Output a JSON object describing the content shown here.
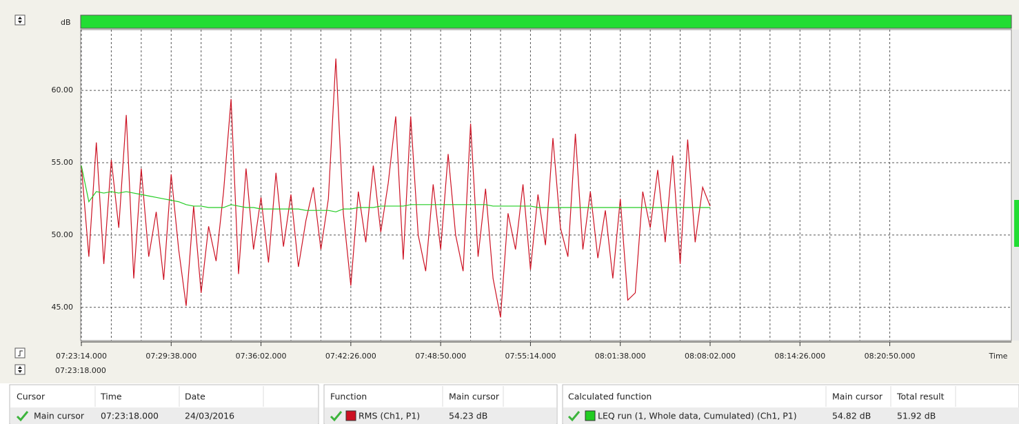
{
  "chart_data": {
    "type": "line",
    "y_label": "dB",
    "x_label": "Time",
    "x": [
      "07:23:14.000",
      "07:23:46.000",
      "07:24:18.000",
      "07:24:50.000",
      "07:25:22.000",
      "07:25:54.000",
      "07:26:26.000",
      "07:26:58.000",
      "07:27:30.000",
      "07:28:02.000",
      "07:28:34.000",
      "07:29:06.000",
      "07:29:38.000",
      "07:30:10.000",
      "07:30:42.000",
      "07:31:14.000",
      "07:31:46.000",
      "07:32:18.000",
      "07:32:50.000",
      "07:33:22.000",
      "07:33:54.000",
      "07:34:26.000",
      "07:34:58.000",
      "07:35:30.000",
      "07:36:02.000",
      "07:36:34.000",
      "07:37:06.000",
      "07:37:38.000",
      "07:38:10.000",
      "07:38:42.000",
      "07:39:14.000",
      "07:39:46.000",
      "07:40:18.000",
      "07:40:50.000",
      "07:41:22.000",
      "07:41:54.000",
      "07:42:26.000",
      "07:42:58.000",
      "07:43:30.000",
      "07:44:02.000",
      "07:44:34.000",
      "07:45:06.000",
      "07:45:38.000",
      "07:46:10.000",
      "07:46:42.000",
      "07:47:14.000",
      "07:47:46.000",
      "07:48:18.000",
      "07:48:50.000",
      "07:49:22.000",
      "07:49:54.000",
      "07:50:26.000",
      "07:50:58.000",
      "07:51:30.000",
      "07:52:02.000",
      "07:52:34.000",
      "07:53:06.000",
      "07:53:38.000",
      "07:54:10.000",
      "07:54:42.000",
      "07:55:14.000",
      "07:55:46.000",
      "07:56:18.000",
      "07:56:50.000",
      "07:57:22.000",
      "07:57:54.000",
      "07:58:26.000",
      "07:58:58.000",
      "07:59:30.000",
      "08:00:02.000",
      "08:00:34.000",
      "08:01:06.000",
      "08:01:38.000",
      "08:02:10.000",
      "08:02:42.000",
      "08:03:14.000",
      "08:03:46.000",
      "08:04:18.000",
      "08:04:50.000",
      "08:05:22.000",
      "08:05:54.000",
      "08:06:26.000",
      "08:06:58.000",
      "08:07:30.000",
      "08:08:02.000"
    ],
    "series": [
      {
        "name": "RMS (Ch1, P1)",
        "color": "#cc1122",
        "values": [
          54.8,
          48.5,
          56.4,
          48.0,
          55.2,
          50.5,
          58.3,
          47.0,
          54.6,
          48.5,
          51.6,
          46.9,
          54.2,
          49.0,
          45.1,
          52.0,
          46.0,
          50.6,
          48.2,
          53.0,
          59.4,
          47.3,
          54.6,
          49.0,
          52.6,
          48.1,
          54.3,
          49.2,
          52.8,
          47.8,
          51.0,
          53.3,
          49.0,
          52.5,
          62.2,
          51.5,
          46.5,
          53.0,
          49.5,
          54.8,
          50.2,
          53.6,
          58.2,
          48.3,
          58.2,
          50.0,
          47.5,
          53.5,
          49.0,
          55.6,
          50.0,
          47.5,
          57.7,
          48.5,
          53.2,
          47.0,
          44.3,
          51.5,
          49.0,
          53.5,
          47.6,
          52.8,
          49.3,
          56.7,
          50.5,
          48.5,
          57.0,
          49.0,
          53.0,
          48.4,
          51.7,
          47.0,
          52.5,
          45.5,
          46.0,
          53.0,
          50.5,
          54.5,
          49.5,
          55.5,
          48.0,
          56.6,
          49.5,
          53.3,
          52.0
        ]
      },
      {
        "name": "LEQ run (1, Whole data, Cumulated) (Ch1, P1)",
        "color": "#22cc22",
        "values": [
          54.8,
          52.3,
          53.0,
          52.9,
          53.0,
          52.9,
          53.0,
          52.9,
          52.8,
          52.7,
          52.6,
          52.5,
          52.4,
          52.3,
          52.1,
          52.0,
          52.0,
          51.9,
          51.9,
          51.9,
          52.1,
          52.0,
          51.9,
          51.9,
          51.8,
          51.8,
          51.8,
          51.8,
          51.8,
          51.8,
          51.7,
          51.7,
          51.7,
          51.7,
          51.6,
          51.8,
          51.8,
          51.9,
          51.9,
          51.9,
          52.0,
          52.0,
          52.0,
          52.0,
          52.1,
          52.1,
          52.1,
          52.1,
          52.1,
          52.1,
          52.1,
          52.1,
          52.1,
          52.1,
          52.1,
          52.0,
          52.0,
          52.0,
          52.0,
          52.0,
          52.0,
          51.9,
          51.9,
          51.9,
          51.9,
          51.9,
          51.9,
          51.9,
          51.9,
          51.9,
          51.9,
          51.9,
          51.9,
          51.9,
          51.9,
          51.9,
          51.9,
          51.9,
          51.9,
          51.9,
          51.9,
          51.9,
          51.9,
          51.9,
          51.9
        ]
      }
    ],
    "xlim": [
      "07:23:14.000",
      "08:29:30.000"
    ],
    "xticks": [
      "07:23:14.000",
      "07:29:38.000",
      "07:36:02.000",
      "07:42:26.000",
      "07:48:50.000",
      "07:55:14.000",
      "08:01:38.000",
      "08:08:02.000",
      "08:14:26.000",
      "08:20:50.000"
    ],
    "ylim": [
      42.7,
      64.2
    ],
    "yticks": [
      {
        "value": 45,
        "label": "45.00"
      },
      {
        "value": 50,
        "label": "50.00"
      },
      {
        "value": 55,
        "label": "55.00"
      },
      {
        "value": 60,
        "label": "60.00"
      }
    ],
    "grid": true
  },
  "cursor_label": "07:23:18.000",
  "cursor_table": {
    "headers": [
      "Cursor",
      "Time",
      "Date"
    ],
    "row": [
      "Main cursor",
      "07:23:18.000",
      "24/03/2016"
    ]
  },
  "function_table": {
    "headers": [
      "Function",
      "Main cursor"
    ],
    "main_cursor": "54.23 dB"
  },
  "calc_table": {
    "headers": [
      "Calculated function",
      "Main cursor",
      "Total result"
    ],
    "main_cursor": "54.82 dB",
    "total_result": "51.92 dB"
  }
}
